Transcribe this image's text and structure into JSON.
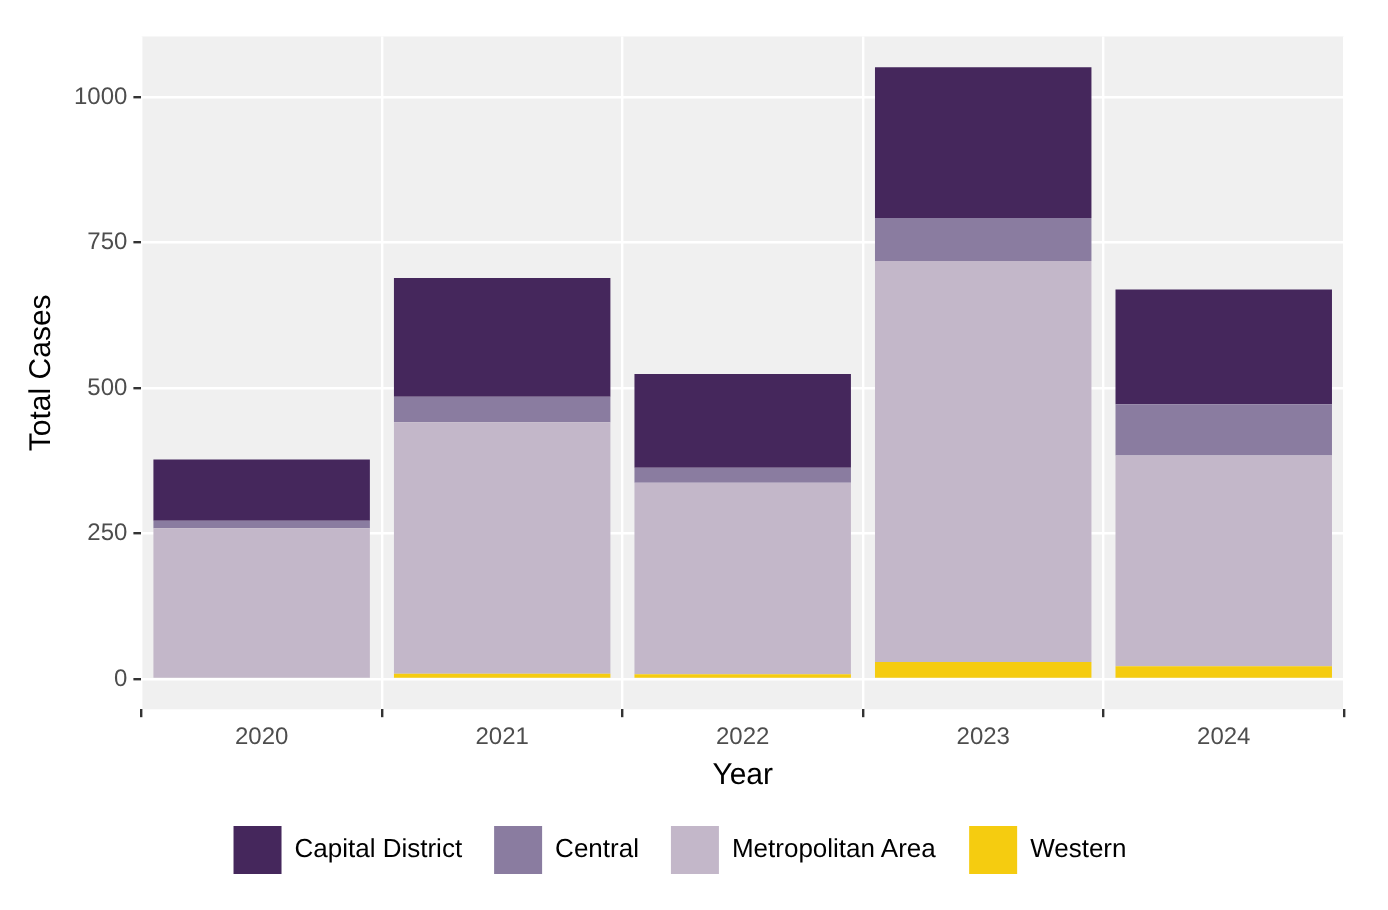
{
  "chart_data": {
    "type": "bar",
    "stacked": true,
    "xlabel": "Year",
    "ylabel": "Total Cases",
    "categories": [
      "2020",
      "2021",
      "2022",
      "2023",
      "2024"
    ],
    "series": [
      {
        "name": "Western",
        "color": "#f5cc10",
        "values": [
          0,
          9,
          8,
          29,
          22
        ]
      },
      {
        "name": "Metropolitan Area",
        "color": "#c3b7c9",
        "values": [
          259,
          432,
          329,
          689,
          362
        ]
      },
      {
        "name": "Central",
        "color": "#8a7ca0",
        "values": [
          13,
          44,
          26,
          74,
          88
        ]
      },
      {
        "name": "Capital District",
        "color": "#45275c",
        "values": [
          105,
          204,
          161,
          259,
          197
        ]
      }
    ],
    "ylim": [
      -52,
      1104
    ],
    "yticks": [
      0,
      250,
      500,
      750,
      1000
    ],
    "grid": true,
    "legend": "bottom"
  }
}
